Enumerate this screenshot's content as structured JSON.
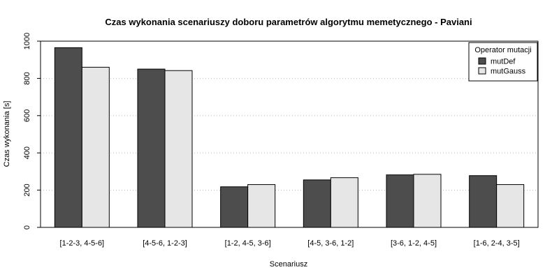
{
  "chart_data": {
    "type": "bar",
    "title": "Czas wykonania scenariuszy doboru parametrów algorytmu memetycznego - Paviani",
    "xlabel": "Scenariusz",
    "ylabel": "Czas wykonania [s]",
    "ylim": [
      0,
      1000
    ],
    "yticks": [
      0,
      200,
      400,
      600,
      800,
      1000
    ],
    "grid": "horizontal dotted",
    "categories": [
      "[1-2-3, 4-5-6]",
      "[4-5-6, 1-2-3]",
      "[1-2, 4-5, 3-6]",
      "[4-5, 3-6, 1-2]",
      "[3-6, 1-2, 4-5]",
      "[1-6, 2-4, 3-5]"
    ],
    "series": [
      {
        "name": "mutDef",
        "color": "#4d4d4d",
        "values": [
          965,
          850,
          218,
          255,
          282,
          278
        ]
      },
      {
        "name": "mutGauss",
        "color": "#e6e6e6",
        "values": [
          860,
          842,
          230,
          267,
          285,
          230
        ]
      }
    ],
    "legend": {
      "title": "Operator mutacji",
      "position": "top-right"
    }
  }
}
